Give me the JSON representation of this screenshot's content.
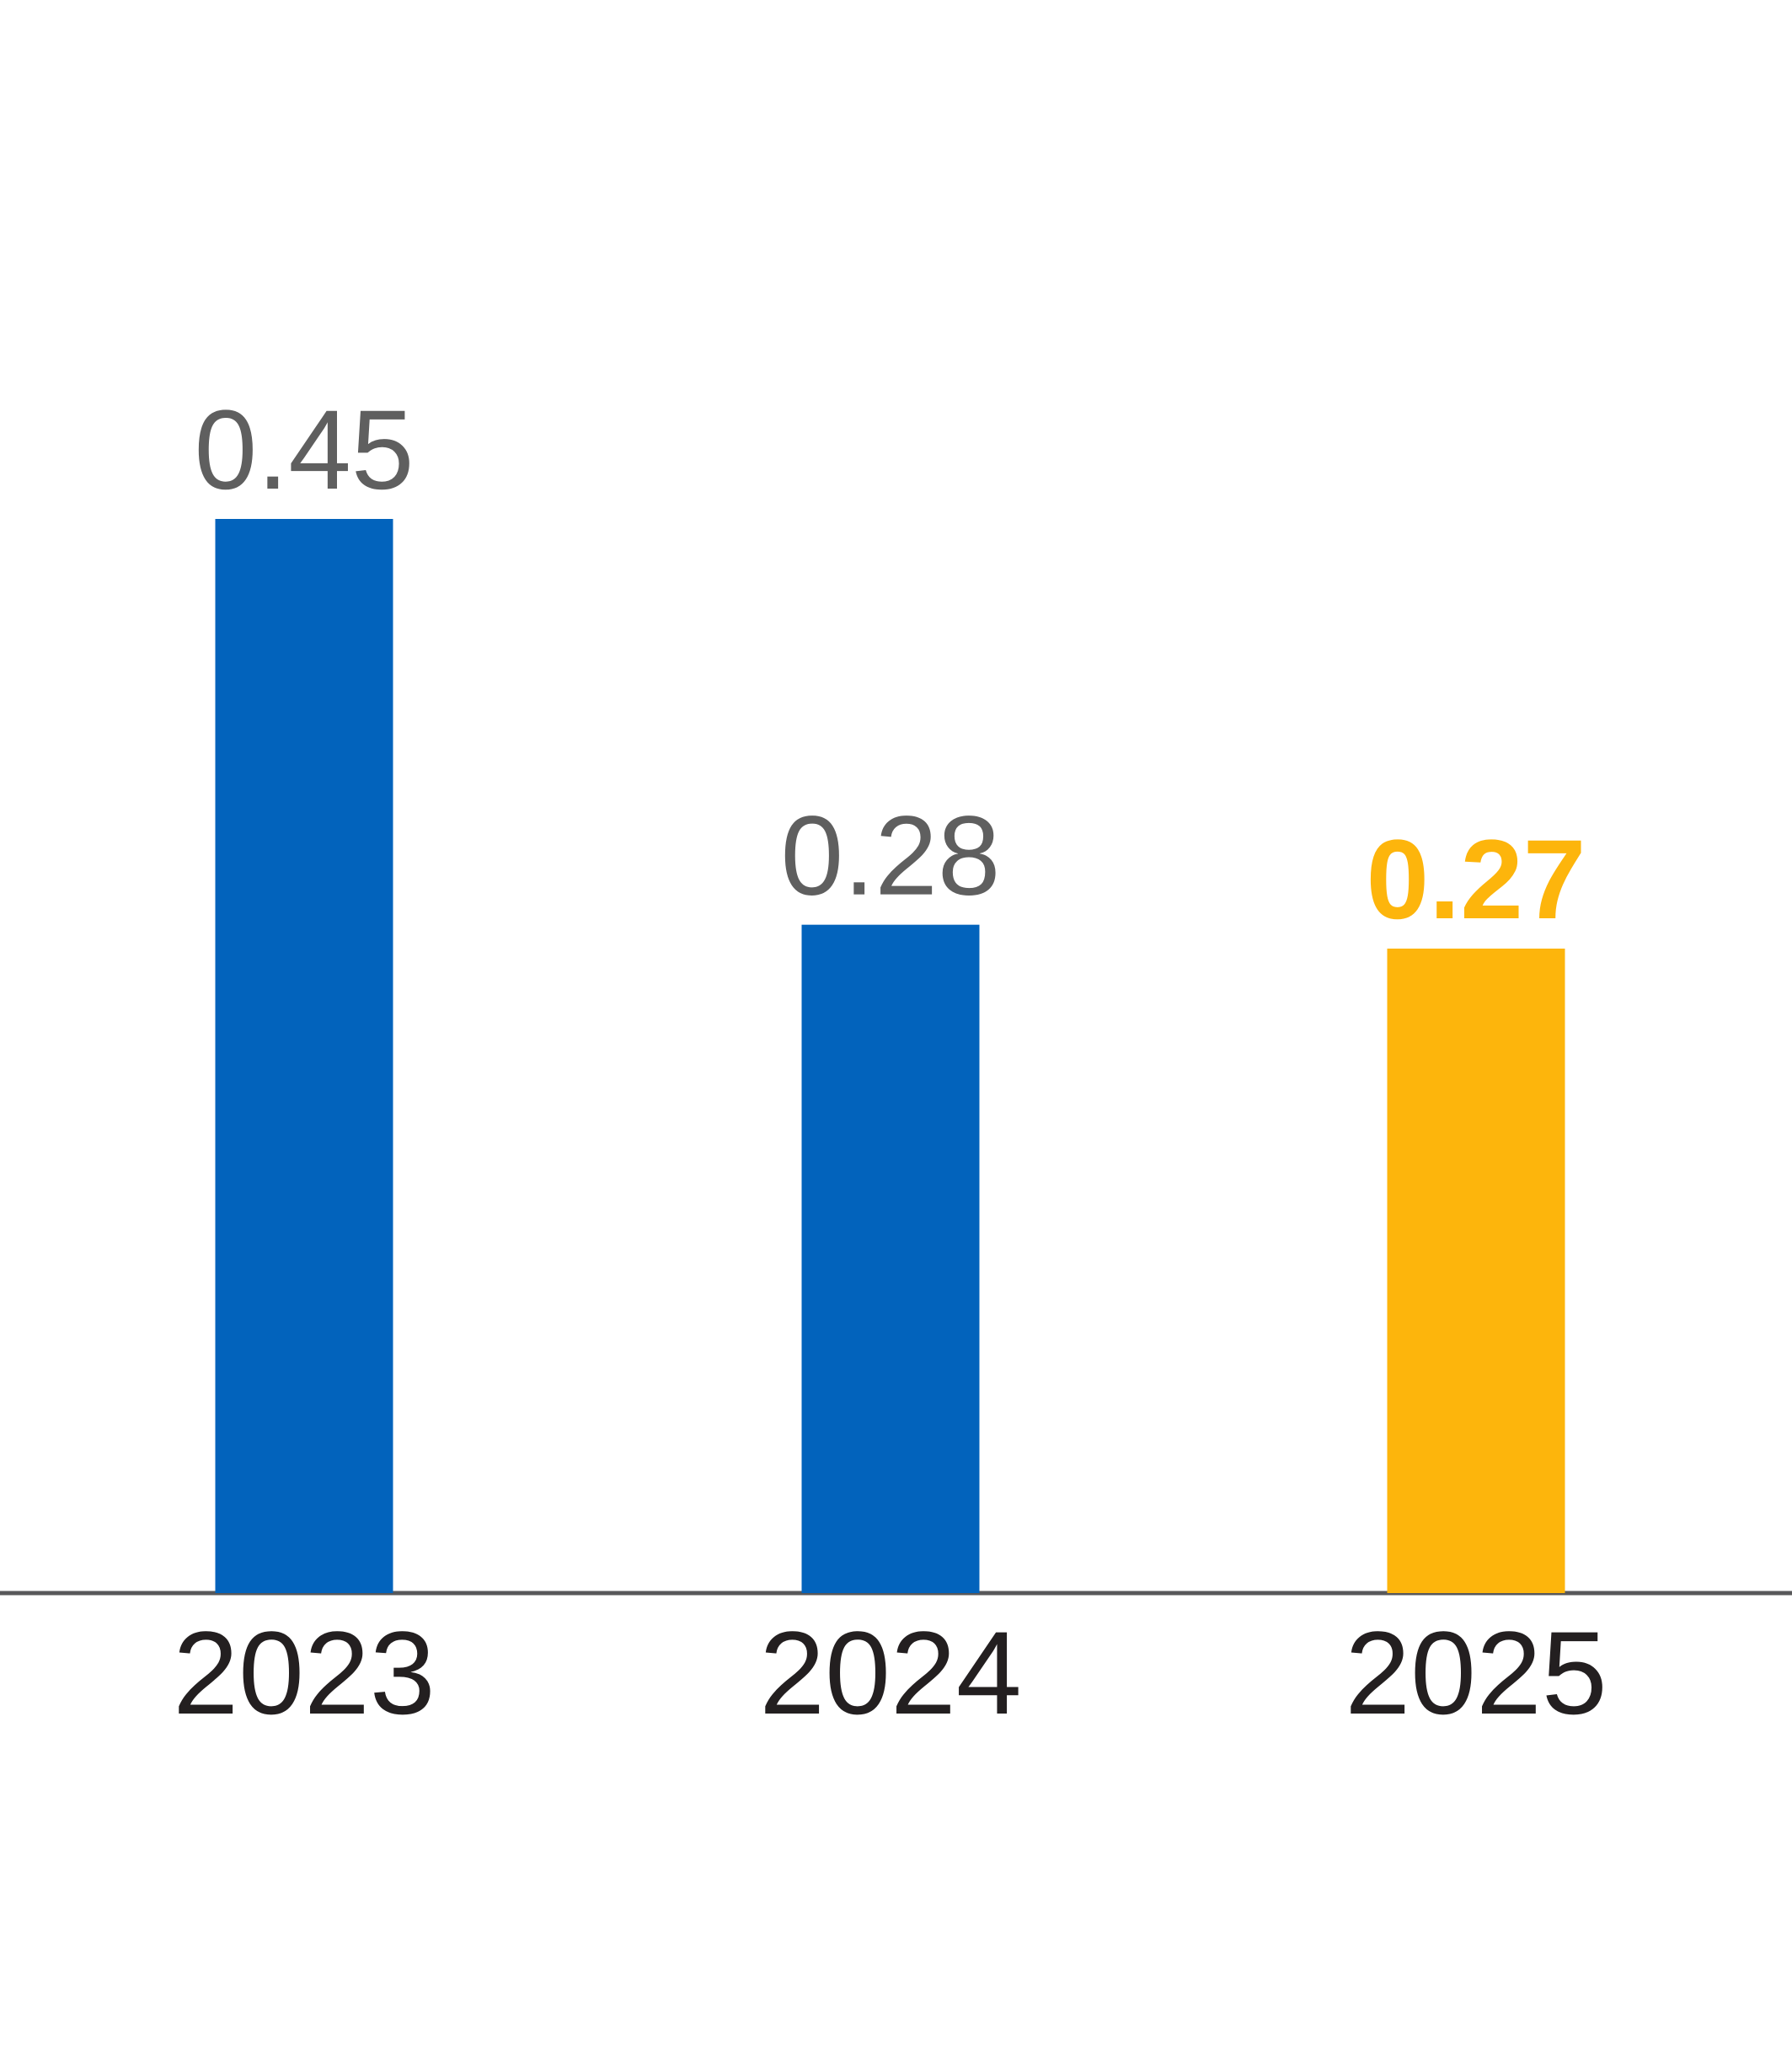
{
  "chart_data": {
    "type": "bar",
    "categories": [
      "2023",
      "2024",
      "2025"
    ],
    "values": [
      0.45,
      0.28,
      0.27
    ],
    "value_labels": [
      "0.45",
      "0.28",
      "0.27"
    ],
    "highlighted_category": "2025",
    "ylim": [
      0,
      0.45
    ],
    "grid": false,
    "legend": "none",
    "colors": {
      "bar": "#0263BC",
      "highlight_bar": "#FDB50C",
      "value_label": "#5F5F5F",
      "highlight_value_label": "#FDB50C",
      "category_label": "#231F20",
      "axis": "#58585A"
    }
  }
}
